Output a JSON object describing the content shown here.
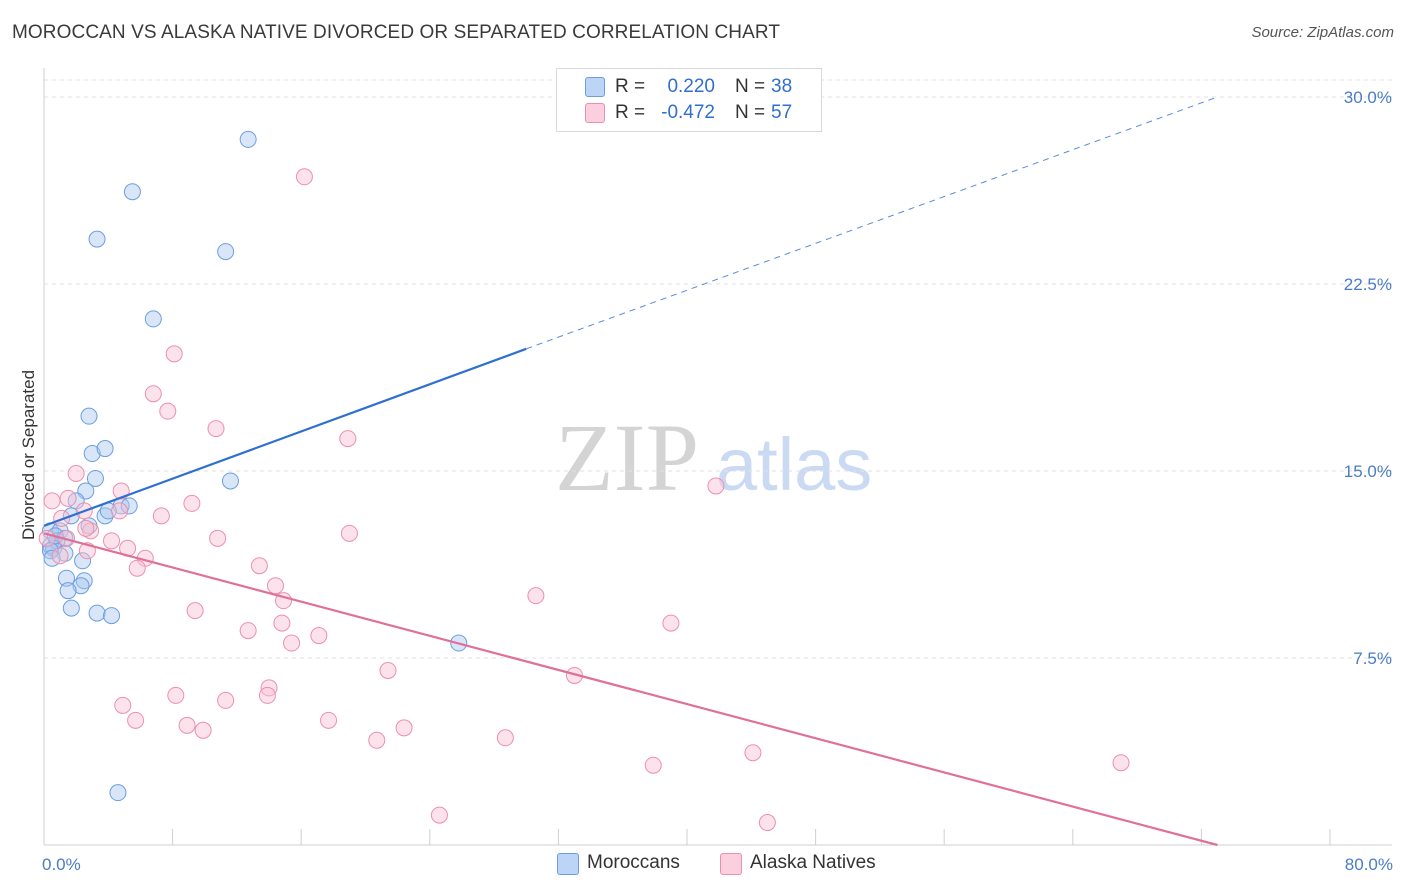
{
  "title": "MOROCCAN VS ALASKA NATIVE DIVORCED OR SEPARATED CORRELATION CHART",
  "source": "Source: ZipAtlas.com",
  "watermark": {
    "zip": "ZIP",
    "atlas": "atlas"
  },
  "legend": {
    "rows": [
      {
        "r_label": "R =",
        "r_value": "0.220",
        "n_label": "N =",
        "n_value": "38",
        "color": "#a9c8f0",
        "edge": "#6b9ee0"
      },
      {
        "r_label": "R =",
        "r_value": "-0.472",
        "n_label": "N =",
        "n_value": "57",
        "color": "#f8c0d2",
        "edge": "#ec8fae"
      }
    ]
  },
  "bottom_legend": [
    {
      "label": "Moroccans",
      "color": "#a9c8f0",
      "edge": "#6b9ee0"
    },
    {
      "label": "Alaska Natives",
      "color": "#f8c0d2",
      "edge": "#ec8fae"
    }
  ],
  "chart_data": {
    "type": "scatter",
    "title": "MOROCCAN VS ALASKA NATIVE DIVORCED OR SEPARATED CORRELATION CHART",
    "xlabel": "",
    "ylabel": "Divorced or Separated",
    "xlim": [
      0,
      80
    ],
    "ylim": [
      0,
      31
    ],
    "x_tick_labels": [
      {
        "value": 0,
        "label": "0.0%"
      },
      {
        "value": 80,
        "label": "80.0%"
      }
    ],
    "y_ticks": [
      {
        "value": 7.5,
        "label": "7.5%"
      },
      {
        "value": 15,
        "label": "15.0%"
      },
      {
        "value": 22.5,
        "label": "22.5%"
      },
      {
        "value": 30,
        "label": "30.0%"
      }
    ],
    "grid": "horizontal dashed",
    "series": [
      {
        "name": "Moroccans",
        "color": "#6b9ee0",
        "fill": "#a9c8f0",
        "line_color": "#2f6fd0",
        "trend": {
          "x0": 0,
          "y0": 12.8,
          "x1": 30,
          "y1": 19.9,
          "dash_x1": 73,
          "dash_y1": 30.0
        },
        "points": [
          [
            12.7,
            28.3
          ],
          [
            5.5,
            26.2
          ],
          [
            3.3,
            24.3
          ],
          [
            11.3,
            23.8
          ],
          [
            6.8,
            21.1
          ],
          [
            2.8,
            17.2
          ],
          [
            3.0,
            15.7
          ],
          [
            3.8,
            15.9
          ],
          [
            3.2,
            14.7
          ],
          [
            11.6,
            14.6
          ],
          [
            2.6,
            14.2
          ],
          [
            2.0,
            13.8
          ],
          [
            4.8,
            13.6
          ],
          [
            5.3,
            13.6
          ],
          [
            1.7,
            13.2
          ],
          [
            3.8,
            13.2
          ],
          [
            4.0,
            13.4
          ],
          [
            2.8,
            12.8
          ],
          [
            0.4,
            12.6
          ],
          [
            1.0,
            12.6
          ],
          [
            1.3,
            12.3
          ],
          [
            0.4,
            12.0
          ],
          [
            0.8,
            12.2
          ],
          [
            0.6,
            11.9
          ],
          [
            1.3,
            11.7
          ],
          [
            0.4,
            11.8
          ],
          [
            0.5,
            11.5
          ],
          [
            2.4,
            11.4
          ],
          [
            1.4,
            10.7
          ],
          [
            2.5,
            10.6
          ],
          [
            2.3,
            10.4
          ],
          [
            1.5,
            10.2
          ],
          [
            1.7,
            9.5
          ],
          [
            3.3,
            9.3
          ],
          [
            4.2,
            9.2
          ],
          [
            25.8,
            8.1
          ],
          [
            4.6,
            2.1
          ],
          [
            0.7,
            12.4
          ]
        ]
      },
      {
        "name": "Alaska Natives",
        "color": "#ec8fae",
        "fill": "#f8c0d2",
        "line_color": "#e07099",
        "trend": {
          "x0": 0,
          "y0": 12.5,
          "x1": 73,
          "y1": 0.0
        },
        "points": [
          [
            16.2,
            26.8
          ],
          [
            8.1,
            19.7
          ],
          [
            6.8,
            18.1
          ],
          [
            7.7,
            17.4
          ],
          [
            10.7,
            16.7
          ],
          [
            18.9,
            16.3
          ],
          [
            2.0,
            14.9
          ],
          [
            41.8,
            14.4
          ],
          [
            4.8,
            14.2
          ],
          [
            1.5,
            13.9
          ],
          [
            0.5,
            13.8
          ],
          [
            9.2,
            13.7
          ],
          [
            4.7,
            13.4
          ],
          [
            2.5,
            13.4
          ],
          [
            7.3,
            13.2
          ],
          [
            1.1,
            13.1
          ],
          [
            2.9,
            12.6
          ],
          [
            2.6,
            12.7
          ],
          [
            19.0,
            12.5
          ],
          [
            1.4,
            12.3
          ],
          [
            10.8,
            12.3
          ],
          [
            4.2,
            12.2
          ],
          [
            0.2,
            12.3
          ],
          [
            5.2,
            11.9
          ],
          [
            2.7,
            11.8
          ],
          [
            6.3,
            11.5
          ],
          [
            13.4,
            11.2
          ],
          [
            5.8,
            11.1
          ],
          [
            14.4,
            10.4
          ],
          [
            30.6,
            10.0
          ],
          [
            14.9,
            9.8
          ],
          [
            9.4,
            9.4
          ],
          [
            39.0,
            8.9
          ],
          [
            14.8,
            8.9
          ],
          [
            12.7,
            8.6
          ],
          [
            17.1,
            8.4
          ],
          [
            15.4,
            8.1
          ],
          [
            21.4,
            7.0
          ],
          [
            33.0,
            6.8
          ],
          [
            14.0,
            6.3
          ],
          [
            8.2,
            6.0
          ],
          [
            11.3,
            5.8
          ],
          [
            13.9,
            6.0
          ],
          [
            4.9,
            5.6
          ],
          [
            5.7,
            5.0
          ],
          [
            8.9,
            4.8
          ],
          [
            9.9,
            4.6
          ],
          [
            17.7,
            5.0
          ],
          [
            22.4,
            4.7
          ],
          [
            20.7,
            4.2
          ],
          [
            28.7,
            4.3
          ],
          [
            44.1,
            3.7
          ],
          [
            37.9,
            3.2
          ],
          [
            67.0,
            3.3
          ],
          [
            24.6,
            1.2
          ],
          [
            45.0,
            0.9
          ],
          [
            1.0,
            11.6
          ]
        ]
      }
    ]
  }
}
